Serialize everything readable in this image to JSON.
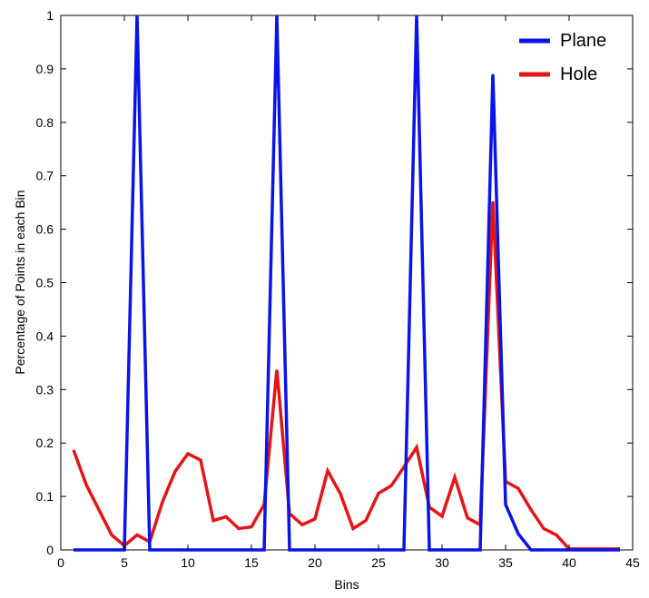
{
  "chart_data": {
    "type": "line",
    "xlabel": "Bins",
    "ylabel": "Percentage of Points in each Bin",
    "xlim": [
      0,
      45
    ],
    "ylim": [
      0,
      1
    ],
    "xticks": [
      0,
      5,
      10,
      15,
      20,
      25,
      30,
      35,
      40,
      45
    ],
    "yticks": [
      0,
      0.1,
      0.2,
      0.3,
      0.4,
      0.5,
      0.6,
      0.7,
      0.8,
      0.9,
      1
    ],
    "grid": false,
    "legend_position": "top-right",
    "series": [
      {
        "name": "Plane",
        "color": "#0a14e6",
        "x": [
          1,
          2,
          3,
          4,
          5,
          6,
          7,
          8,
          9,
          10,
          11,
          12,
          13,
          14,
          15,
          16,
          17,
          18,
          19,
          20,
          21,
          22,
          23,
          24,
          25,
          26,
          27,
          28,
          29,
          30,
          31,
          32,
          33,
          34,
          35,
          36,
          37,
          38,
          39,
          40,
          41,
          42,
          43,
          44
        ],
        "y": [
          0,
          0,
          0,
          0,
          0,
          1,
          0,
          0,
          0,
          0,
          0,
          0,
          0,
          0,
          0,
          0,
          1,
          0,
          0,
          0,
          0,
          0,
          0,
          0,
          0,
          0,
          0,
          1,
          0,
          0,
          0,
          0,
          0,
          0.89,
          0.085,
          0.03,
          0,
          0,
          0,
          0,
          0,
          0,
          0,
          0
        ]
      },
      {
        "name": "Hole",
        "color": "#e61414",
        "x": [
          1,
          2,
          3,
          4,
          5,
          6,
          7,
          8,
          9,
          10,
          11,
          12,
          13,
          14,
          15,
          16,
          17,
          18,
          19,
          20,
          21,
          22,
          23,
          24,
          25,
          26,
          27,
          28,
          29,
          30,
          31,
          32,
          33,
          34,
          35,
          36,
          37,
          38,
          39,
          40,
          41,
          42,
          43,
          44
        ],
        "y": [
          0.187,
          0.122,
          0.075,
          0.028,
          0.008,
          0.028,
          0.015,
          0.09,
          0.147,
          0.18,
          0.168,
          0.055,
          0.062,
          0.04,
          0.043,
          0.085,
          0.337,
          0.068,
          0.047,
          0.058,
          0.148,
          0.105,
          0.04,
          0.055,
          0.106,
          0.12,
          0.155,
          0.192,
          0.08,
          0.063,
          0.136,
          0.06,
          0.047,
          0.652,
          0.128,
          0.115,
          0.075,
          0.04,
          0.028,
          0.002,
          0.002,
          0.002,
          0.002,
          0.002
        ]
      }
    ]
  }
}
